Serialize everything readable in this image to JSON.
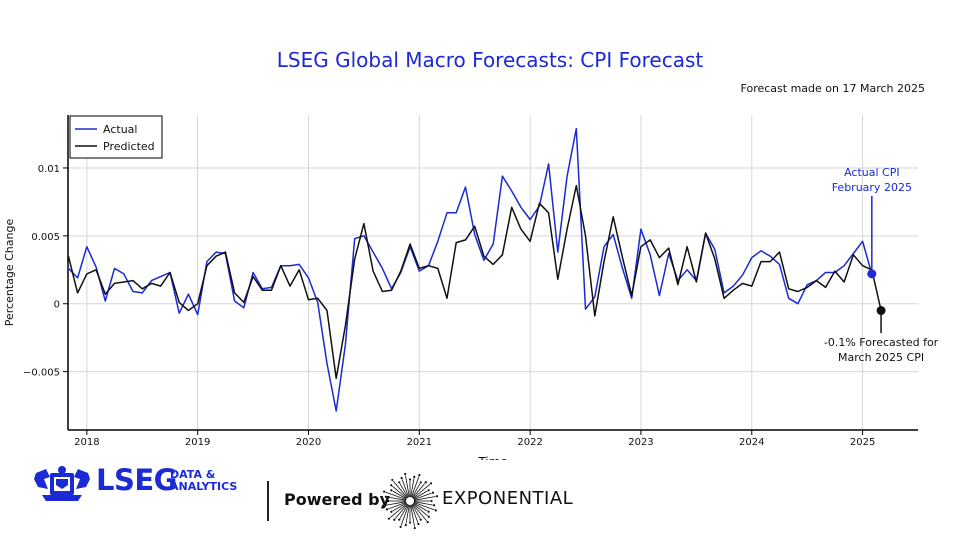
{
  "chart_data": {
    "type": "line",
    "title": "LSEG Global Macro Forecasts: CPI Forecast",
    "subtitle": "Forecast made on 17 March 2025",
    "xlabel": "Time",
    "ylabel": "Percentage Change",
    "x_start": "2017-11",
    "xlim": [
      2017.83,
      2025.5
    ],
    "ylim": [
      -0.0093,
      0.0139
    ],
    "x_ticks": [
      {
        "value": 2018,
        "label": "2018"
      },
      {
        "value": 2019,
        "label": "2019"
      },
      {
        "value": 2020,
        "label": "2020"
      },
      {
        "value": 2021,
        "label": "2021"
      },
      {
        "value": 2022,
        "label": "2022"
      },
      {
        "value": 2023,
        "label": "2023"
      },
      {
        "value": 2024,
        "label": "2024"
      },
      {
        "value": 2025,
        "label": "2025"
      }
    ],
    "y_ticks": [
      {
        "value": 0.01,
        "label": "0.01"
      },
      {
        "value": 0.005,
        "label": "0.005"
      },
      {
        "value": 0,
        "label": "0"
      },
      {
        "value": -0.005,
        "label": "−0.005"
      }
    ],
    "grid": true,
    "legend_position": "top-left",
    "series": [
      {
        "name": "Actual",
        "color": "#1a2ad4",
        "values": [
          0.0026,
          0.0019,
          0.0042,
          0.0027,
          0.0002,
          0.0026,
          0.0022,
          0.0009,
          0.0008,
          0.0017,
          0.002,
          0.0023,
          -0.0007,
          0.0007,
          -0.0008,
          0.0031,
          0.0038,
          0.0037,
          0.0002,
          -0.0003,
          0.0023,
          0.0011,
          0.0012,
          0.0028,
          0.0028,
          0.0029,
          0.0019,
          0.0001,
          -0.0044,
          -0.0079,
          -0.003,
          0.0048,
          0.005,
          0.0038,
          0.0026,
          0.0011,
          0.0023,
          0.0042,
          0.0024,
          0.0028,
          0.0046,
          0.0067,
          0.0067,
          0.0086,
          0.0051,
          0.0032,
          0.0044,
          0.0094,
          0.0083,
          0.0071,
          0.0062,
          0.0072,
          0.0103,
          0.0038,
          0.0094,
          0.0129,
          -0.0004,
          0.0005,
          0.0042,
          0.0051,
          0.0026,
          0.0004,
          0.0055,
          0.0036,
          0.0006,
          0.0037,
          0.0017,
          0.0025,
          0.0017,
          0.0052,
          0.004,
          0.0008,
          0.0013,
          0.0021,
          0.0034,
          0.0039,
          0.0035,
          0.0029,
          0.0004,
          0.0,
          0.0014,
          0.0017,
          0.0023,
          0.0023,
          0.0028,
          0.0037,
          0.0046,
          0.0022
        ]
      },
      {
        "name": "Predicted",
        "color": "#111111",
        "values": [
          0.0035,
          0.0008,
          0.0022,
          0.0025,
          0.0007,
          0.0015,
          0.0016,
          0.0017,
          0.0011,
          0.0015,
          0.0013,
          0.0023,
          0.0001,
          -0.0005,
          0.0,
          0.0028,
          0.0035,
          0.0038,
          0.0008,
          0.0001,
          0.002,
          0.001,
          0.001,
          0.0028,
          0.0013,
          0.0025,
          0.0003,
          0.0004,
          -0.0005,
          -0.0055,
          -0.0016,
          0.0033,
          0.0059,
          0.0024,
          0.0009,
          0.001,
          0.0024,
          0.0044,
          0.0026,
          0.0028,
          0.0026,
          0.0004,
          0.0045,
          0.0047,
          0.0057,
          0.0035,
          0.0029,
          0.0036,
          0.0071,
          0.0055,
          0.0046,
          0.0074,
          0.0067,
          0.0018,
          0.0055,
          0.0087,
          0.005,
          -0.0009,
          0.0031,
          0.0064,
          0.0034,
          0.0006,
          0.0042,
          0.0047,
          0.0034,
          0.0041,
          0.0014,
          0.0042,
          0.0016,
          0.0052,
          0.0033,
          0.0004,
          0.001,
          0.0015,
          0.0013,
          0.0031,
          0.0031,
          0.0038,
          0.0011,
          0.0009,
          0.0012,
          0.0017,
          0.0012,
          0.0024,
          0.0016,
          0.0036,
          0.0028,
          0.0025,
          -0.0005
        ]
      }
    ],
    "annotations": [
      {
        "text_lines": [
          "Actual CPI",
          "February 2025"
        ],
        "series": "Actual",
        "point": "2025-02",
        "value": 0.0022,
        "color": "#1a2ad4"
      },
      {
        "text_lines": [
          "-0.1% Forecasted for",
          "March 2025 CPI"
        ],
        "series": "Predicted",
        "point": "2025-03",
        "value": -0.0005,
        "color": "#111111"
      }
    ]
  },
  "footer": {
    "brand": "LSEG",
    "brand_sub_line1": "DATA &",
    "brand_sub_line2": "ANALYTICS",
    "powered_by": "Powered by",
    "partner": "EXPONENTIAL",
    "brand_color": "#1a2ad4"
  }
}
